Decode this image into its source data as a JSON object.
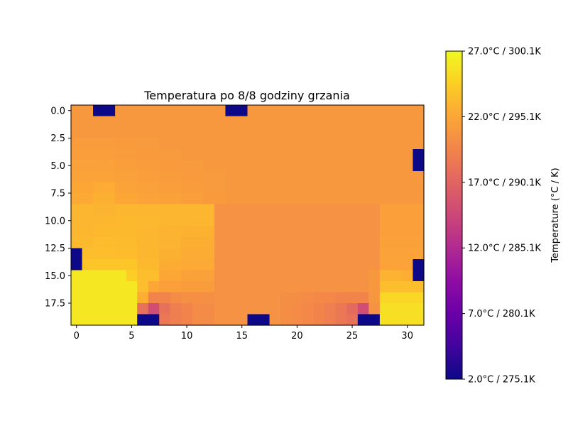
{
  "chart_data": {
    "type": "heatmap",
    "title": "Temperatura po 8/8 godziny grzania",
    "xlabel": "",
    "ylabel": "",
    "colormap": "plasma",
    "grid": false,
    "x_ticks": [
      0,
      5,
      10,
      15,
      20,
      25,
      30
    ],
    "x_tick_labels": [
      "0",
      "5",
      "10",
      "15",
      "20",
      "25",
      "30"
    ],
    "y_ticks": [
      0,
      2.5,
      5,
      7.5,
      10,
      12.5,
      15,
      17.5
    ],
    "y_tick_labels": [
      "0.0",
      "2.5",
      "5.0",
      "7.5",
      "10.0",
      "12.5",
      "15.0",
      "17.5"
    ],
    "colorbar": {
      "label": "Temperature (°C / K)",
      "vmin": 2.0,
      "vmax": 27.0,
      "ticks": [
        2,
        7,
        12,
        17,
        22,
        27
      ],
      "tick_labels": [
        "2.0°C / 275.1K",
        "7.0°C / 280.1K",
        "12.0°C / 285.1K",
        "17.0°C / 290.1K",
        "22.0°C / 295.1K",
        "27.0°C / 300.1K"
      ]
    },
    "values": [
      [
        21,
        21,
        2,
        2,
        21,
        21,
        21,
        21,
        21,
        21,
        21,
        21,
        21,
        21,
        2,
        2,
        21,
        21,
        21,
        21,
        21,
        21,
        21,
        21,
        21,
        21,
        21,
        21,
        21,
        21,
        21,
        21
      ],
      [
        21,
        21,
        21,
        21,
        21,
        21,
        21,
        21,
        21,
        21,
        21,
        21,
        21,
        21,
        21,
        21,
        21,
        21,
        21,
        21,
        21,
        21,
        21,
        21,
        21,
        21,
        21,
        21,
        21,
        21,
        21,
        21
      ],
      [
        21,
        21,
        21,
        21,
        21,
        21,
        21,
        21,
        21,
        21,
        21,
        21,
        21,
        21,
        21,
        21,
        21,
        21,
        21,
        21,
        21,
        21,
        21,
        21,
        21,
        21,
        21,
        21,
        21,
        21,
        21,
        21
      ],
      [
        21.3,
        21.3,
        21.3,
        21.3,
        21.2,
        21.2,
        21.1,
        21.1,
        21,
        21,
        21,
        21,
        21,
        21,
        21,
        21,
        21,
        21,
        21,
        21,
        21,
        21,
        21,
        21,
        21,
        21,
        21,
        21,
        21,
        21,
        21,
        21
      ],
      [
        21.4,
        21.4,
        21.4,
        21.4,
        21.3,
        21.3,
        21.2,
        21.2,
        21.1,
        21.1,
        21,
        21,
        21,
        21,
        21,
        21,
        21,
        21,
        21,
        21,
        21,
        21,
        21,
        21,
        21,
        21,
        21,
        21,
        21,
        21,
        21,
        2
      ],
      [
        21.6,
        21.6,
        21.6,
        21.6,
        21.4,
        21.4,
        21.3,
        21.3,
        21.2,
        21.2,
        21.1,
        21.1,
        21,
        21,
        21,
        21,
        21,
        21,
        21,
        21,
        21,
        21,
        21,
        21,
        21,
        21,
        21,
        21,
        21,
        21,
        21,
        2
      ],
      [
        21.8,
        21.8,
        21.8,
        21.8,
        21.6,
        21.6,
        21.4,
        21.4,
        21.3,
        21.3,
        21.2,
        21.2,
        21.1,
        21.1,
        21,
        21,
        21,
        21,
        21,
        21,
        21,
        21,
        21,
        21,
        21,
        21,
        21,
        21,
        21,
        21,
        21,
        21
      ],
      [
        22,
        22,
        22.3,
        22.3,
        21.8,
        21.8,
        21.6,
        21.6,
        21.4,
        21.4,
        21.3,
        21.3,
        21.1,
        21.1,
        21,
        21,
        21,
        21,
        21,
        21,
        21,
        21,
        21,
        21,
        21,
        21,
        21,
        21,
        21,
        21,
        21,
        21
      ],
      [
        22.2,
        22.2,
        22.6,
        22.6,
        22,
        22,
        21.8,
        21.8,
        21.6,
        21.6,
        21.4,
        21.4,
        21.2,
        21.2,
        21,
        21,
        21,
        21,
        21,
        21,
        21,
        21,
        21,
        21,
        21,
        21,
        21,
        21,
        21,
        21,
        21,
        21
      ],
      [
        23,
        23,
        22.8,
        22.8,
        23,
        23,
        23,
        23,
        23,
        23,
        23,
        23,
        23,
        20.5,
        20.5,
        20.5,
        20.5,
        20.5,
        20.5,
        20.5,
        20.5,
        20.5,
        20.5,
        20.5,
        20.5,
        20.5,
        20.5,
        20.5,
        21.5,
        21.5,
        21.5,
        21.5
      ],
      [
        23,
        23,
        23,
        23,
        23.2,
        23.2,
        23.2,
        23.2,
        23,
        23,
        23,
        23,
        23,
        20.5,
        20.5,
        20.5,
        20.5,
        20.5,
        20.5,
        20.5,
        20.5,
        20.5,
        20.5,
        20.5,
        20.5,
        20.5,
        20.5,
        20.5,
        21.5,
        21.5,
        21.5,
        21.5
      ],
      [
        23,
        23,
        23.2,
        23.2,
        23.2,
        23.2,
        23,
        23,
        22.9,
        22.9,
        22.7,
        22.7,
        22.7,
        20.5,
        20.5,
        20.5,
        20.5,
        20.5,
        20.5,
        20.5,
        20.5,
        20.5,
        20.5,
        20.5,
        20.5,
        20.5,
        20.5,
        20.5,
        21.5,
        21.5,
        21.5,
        21.5
      ],
      [
        23.2,
        23.2,
        23.4,
        23.4,
        23.3,
        23.3,
        23,
        23,
        22.8,
        22.8,
        22.5,
        22.5,
        22.5,
        20.5,
        20.5,
        20.5,
        20.5,
        20.5,
        20.5,
        20.5,
        20.5,
        20.5,
        20.5,
        20.5,
        20.5,
        20.5,
        20.5,
        20.5,
        21.6,
        21.6,
        21.6,
        21.6
      ],
      [
        2,
        23.5,
        23.5,
        23.5,
        23.4,
        23.4,
        23,
        23,
        22.6,
        22.6,
        22.4,
        22.4,
        22.4,
        20.5,
        20.5,
        20.5,
        20.5,
        20.5,
        20.5,
        20.5,
        20.5,
        20.5,
        20.5,
        20.5,
        20.5,
        20.5,
        20.5,
        20.5,
        21.7,
        21.7,
        21.7,
        21.7
      ],
      [
        2,
        24,
        24,
        24,
        24,
        24,
        23.2,
        23.2,
        22.4,
        22.4,
        22.2,
        22.2,
        22.2,
        20.5,
        20.5,
        20.5,
        20.5,
        20.5,
        20.5,
        20.5,
        20.5,
        20.5,
        20.5,
        20.5,
        20.5,
        20.5,
        20.5,
        20.5,
        21.8,
        21.8,
        21.8,
        2
      ],
      [
        26,
        26,
        26,
        26,
        26,
        24.5,
        23.5,
        23.5,
        22,
        22,
        21.6,
        21.6,
        21.6,
        20.5,
        20.5,
        20.5,
        20.5,
        20.5,
        20.5,
        20.5,
        20.5,
        20.5,
        20.5,
        20.5,
        20.5,
        20.5,
        20.5,
        21,
        22.8,
        22.8,
        22.5,
        2
      ],
      [
        26,
        26,
        26,
        26,
        26,
        26,
        23.5,
        22,
        21.5,
        21.5,
        21.3,
        21.3,
        21.3,
        20.5,
        20.5,
        20.5,
        20.5,
        20.5,
        20.5,
        20.5,
        20.5,
        20.5,
        20.5,
        20.5,
        20.5,
        20.5,
        20.5,
        21,
        23.5,
        23.5,
        23.5,
        23.5
      ],
      [
        26,
        26,
        26,
        26,
        26,
        26,
        22.5,
        19.5,
        19.5,
        20,
        20.3,
        20.3,
        20.3,
        20.5,
        20.5,
        20.5,
        20.5,
        20.5,
        20.5,
        20.2,
        20.2,
        20,
        19.8,
        19.8,
        19.5,
        19.5,
        19.5,
        20.8,
        25,
        25,
        25,
        25
      ],
      [
        26,
        26,
        26,
        26,
        26,
        26,
        18,
        15,
        18,
        19,
        19.5,
        20,
        20,
        20.5,
        20.5,
        20.5,
        20.5,
        20.5,
        20.5,
        20.2,
        20,
        19.8,
        19.5,
        19,
        18.5,
        17.5,
        15,
        20.5,
        25.5,
        25.5,
        25.5,
        25.5
      ],
      [
        26,
        26,
        26,
        26,
        26,
        26,
        2,
        2,
        18.5,
        19,
        19.5,
        20,
        20,
        20.5,
        20.5,
        20.5,
        2,
        2,
        20.5,
        20.2,
        20,
        19.8,
        19.5,
        19,
        18.5,
        18,
        2,
        2,
        25.5,
        25.5,
        25.5,
        25.5
      ]
    ]
  }
}
